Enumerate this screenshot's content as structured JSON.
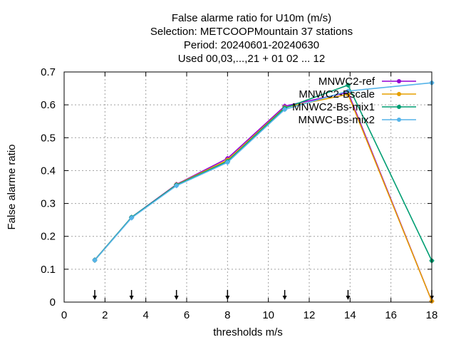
{
  "chart_data": {
    "type": "line",
    "title_lines": [
      "False alarme ratio  for U10m (m/s)",
      "Selection: METCOOPMountain     37 stations",
      "Period: 20240601-20240630",
      "Used 00,03,...,21 + 01 02 ... 12"
    ],
    "xlabel": "thresholds m/s",
    "ylabel": "False alarme ratio",
    "xlim": [
      0,
      18
    ],
    "ylim": [
      0,
      0.7
    ],
    "xticks": [
      0,
      2,
      4,
      6,
      8,
      10,
      12,
      14,
      16,
      18
    ],
    "yticks": [
      0,
      0.1,
      0.2,
      0.3,
      0.4,
      0.5,
      0.6,
      0.7
    ],
    "grid": true,
    "legend_position": "top-right",
    "threshold_markers_x": [
      1.5,
      3.3,
      5.5,
      8,
      10.8,
      13.9,
      18
    ],
    "series": [
      {
        "name": "MNWC2-ref",
        "color": "#9400d3",
        "x": [
          1.5,
          3.3,
          5.5,
          8,
          10.8,
          13.9,
          18
        ],
        "values": [
          0.128,
          0.258,
          0.358,
          0.437,
          0.596,
          0.638,
          0.003
        ]
      },
      {
        "name": "MNWC2-Bscale",
        "color": "#e69f00",
        "x": [
          1.5,
          3.3,
          5.5,
          8,
          10.8,
          13.9,
          18
        ],
        "values": [
          0.127,
          0.257,
          0.357,
          0.432,
          0.592,
          0.632,
          0.003
        ]
      },
      {
        "name": "MNWC2-Bs-mix1",
        "color": "#009e73",
        "x": [
          1.5,
          3.3,
          5.5,
          8,
          10.8,
          13.9,
          18
        ],
        "values": [
          0.128,
          0.258,
          0.356,
          0.428,
          0.59,
          0.66,
          0.126
        ]
      },
      {
        "name": "MNWC-Bs-mix2",
        "color": "#56b4e9",
        "x": [
          1.5,
          3.3,
          5.5,
          8,
          10.8,
          13.9,
          18
        ],
        "values": [
          0.127,
          0.256,
          0.354,
          0.425,
          0.586,
          0.642,
          0.667
        ]
      }
    ]
  }
}
